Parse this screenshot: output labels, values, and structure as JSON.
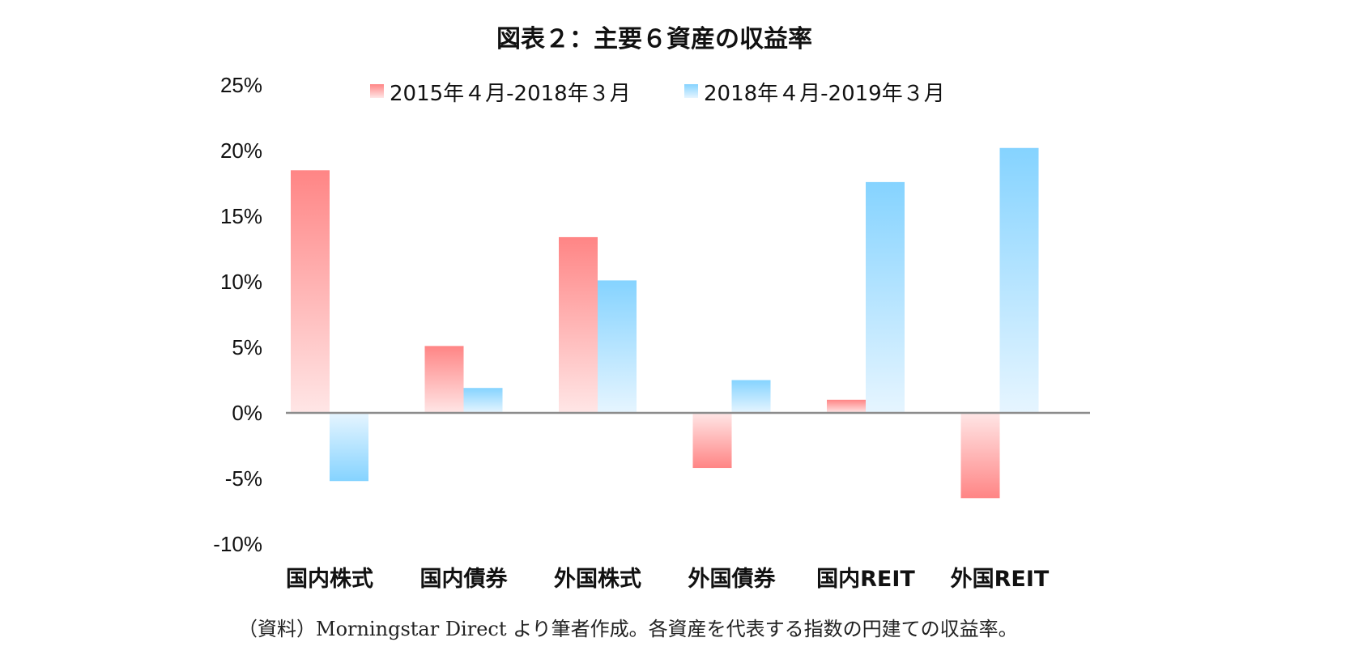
{
  "chart_data": {
    "type": "bar",
    "title": "図表２：主要６資産の収益率",
    "categories": [
      "国内株式",
      "国内債券",
      "外国株式",
      "外国債券",
      "国内REIT",
      "外国REIT"
    ],
    "series": [
      {
        "name": "2015年４月-2018年３月",
        "values": [
          18.5,
          5.1,
          13.4,
          -4.2,
          1.0,
          -6.5
        ],
        "color_top": "#ff8585",
        "color_base": "#ffe6e6"
      },
      {
        "name": "2018年４月-2019年３月",
        "values": [
          -5.2,
          1.9,
          10.1,
          2.5,
          17.6,
          20.2
        ],
        "color_top": "#85d3ff",
        "color_base": "#e6f5ff"
      }
    ],
    "ylim": [
      -10,
      25
    ],
    "yticks": [
      25,
      20,
      15,
      10,
      5,
      0,
      -5,
      -10
    ],
    "ytick_labels": [
      "25%",
      "20%",
      "15%",
      "10%",
      "5%",
      "0%",
      "-5%",
      "-10%"
    ],
    "xlabel": "",
    "ylabel": "",
    "grid": false,
    "legend_position": "top"
  },
  "source_note": "（資料）Morningstar Direct より筆者作成。各資産を代表する指数の円建ての収益率。"
}
